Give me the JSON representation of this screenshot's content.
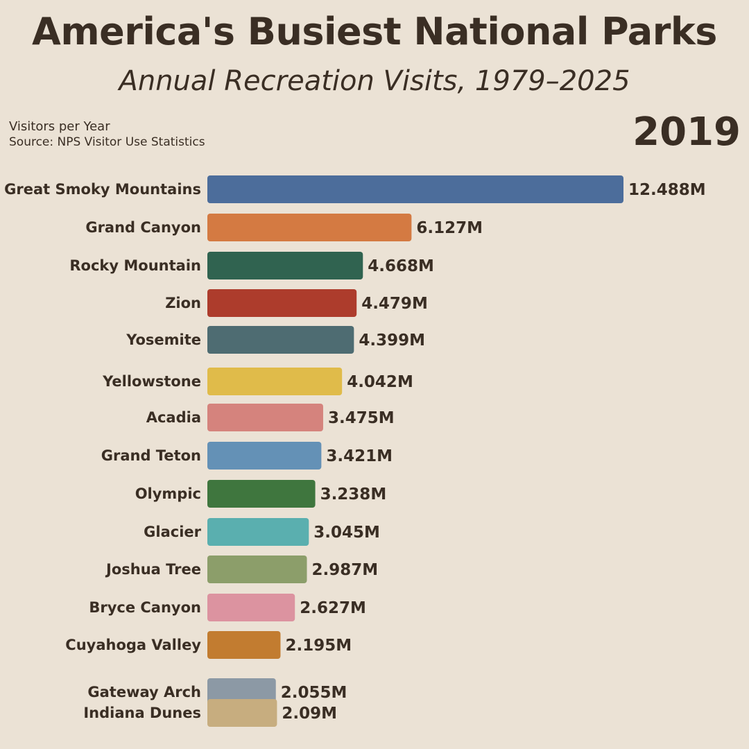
{
  "header": {
    "title": "America's Busiest National Parks",
    "subtitle": "Annual Recreation Visits, 1979–2025",
    "ylabel": "Visitors per Year",
    "source": "Source: NPS Visitor Use Statistics",
    "current_year": "2019"
  },
  "chart_data": {
    "type": "bar",
    "orientation": "horizontal",
    "title": "America's Busiest National Parks",
    "subtitle": "Annual Recreation Visits, 1979–2025",
    "ylabel": "Visitors per Year",
    "year": "2019",
    "value_suffix": "M",
    "categories": [
      "Great Smoky Mountains",
      "Grand Canyon",
      "Rocky Mountain",
      "Zion",
      "Yosemite",
      "Yellowstone",
      "Acadia",
      "Grand Teton",
      "Olympic",
      "Glacier",
      "Joshua Tree",
      "Bryce Canyon",
      "Cuyahoga Valley",
      "Gateway Arch",
      "Indiana Dunes"
    ],
    "values": [
      12.488,
      6.127,
      4.668,
      4.479,
      4.399,
      4.042,
      3.475,
      3.421,
      3.238,
      3.045,
      2.987,
      2.627,
      2.195,
      2.055,
      2.09
    ],
    "value_labels": [
      "12.488M",
      "6.127M",
      "4.668M",
      "4.479M",
      "4.399M",
      "4.042M",
      "3.475M",
      "3.421M",
      "3.238M",
      "3.045M",
      "2.987M",
      "2.627M",
      "2.195M",
      "2.055M",
      "2.09M"
    ],
    "colors": [
      "#4c6d9b",
      "#d47a42",
      "#306350",
      "#ad3c2c",
      "#4e6c72",
      "#e0bb4a",
      "#d5837d",
      "#6491b6",
      "#3f763e",
      "#5aafaf",
      "#8c9e6a",
      "#dc93a0",
      "#c27c30",
      "#8c99a5",
      "#c7ad7f"
    ],
    "xlim": [
      0,
      12.488
    ],
    "grid": false,
    "legend": "none"
  }
}
